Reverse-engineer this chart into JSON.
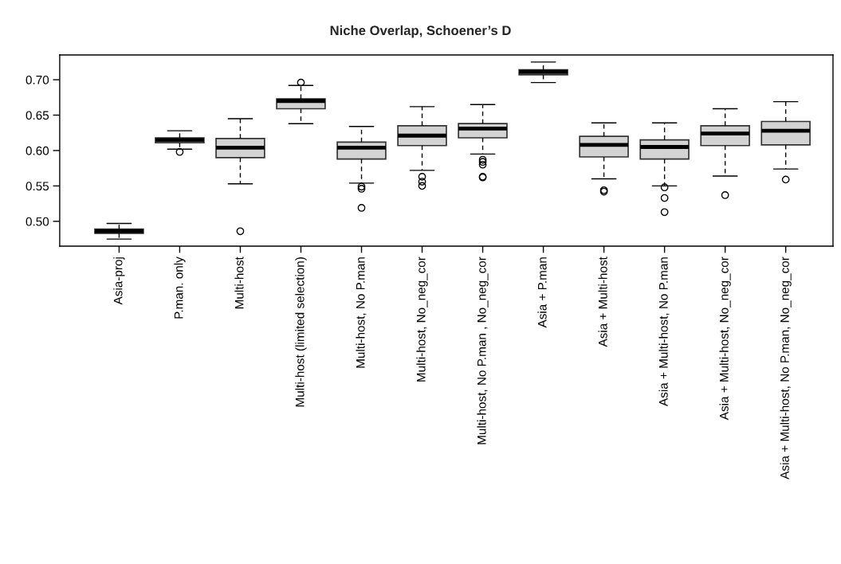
{
  "chart_data": {
    "type": "box",
    "title": "Niche Overlap, Schoener’s D",
    "categories": [
      "Asia-proj",
      "P.man. only",
      "Multi-host",
      "Multi-host (limited selection)",
      "Multi-host, No P.man",
      "Multi-host, No_neg_cor",
      "Multi-host, No P.man , No_neg_cor",
      "Asia + P.man",
      "Asia + Multi-host",
      "Asia + Multi-host, No P.man",
      "Asia + Multi-host, No_neg_cor",
      "Asia + Multi-host, No P.man, No_neg_cor"
    ],
    "color": "#d3d3d3",
    "boxes": [
      {
        "low": 0.475,
        "q1": 0.483,
        "median": 0.486,
        "q3": 0.489,
        "high": 0.497
      },
      {
        "low": 0.602,
        "q1": 0.611,
        "median": 0.615,
        "q3": 0.618,
        "high": 0.628,
        "outliers": [
          0.598
        ]
      },
      {
        "low": 0.553,
        "q1": 0.59,
        "median": 0.604,
        "q3": 0.617,
        "high": 0.645,
        "outliers": [
          0.486
        ]
      },
      {
        "low": 0.638,
        "q1": 0.659,
        "median": 0.67,
        "q3": 0.673,
        "high": 0.692,
        "outliers": [
          0.696
        ]
      },
      {
        "low": 0.554,
        "q1": 0.588,
        "median": 0.604,
        "q3": 0.612,
        "high": 0.634,
        "outliers": [
          0.549,
          0.546,
          0.519
        ]
      },
      {
        "low": 0.572,
        "q1": 0.607,
        "median": 0.621,
        "q3": 0.635,
        "high": 0.662,
        "outliers": [
          0.563,
          0.556,
          0.55
        ]
      },
      {
        "low": 0.595,
        "q1": 0.618,
        "median": 0.631,
        "q3": 0.638,
        "high": 0.665,
        "outliers": [
          0.587,
          0.584,
          0.58,
          0.563,
          0.562
        ]
      },
      {
        "low": 0.696,
        "q1": 0.707,
        "median": 0.711,
        "q3": 0.714,
        "high": 0.725
      },
      {
        "low": 0.56,
        "q1": 0.591,
        "median": 0.608,
        "q3": 0.62,
        "high": 0.639,
        "outliers": [
          0.544,
          0.542
        ]
      },
      {
        "low": 0.55,
        "q1": 0.588,
        "median": 0.605,
        "q3": 0.615,
        "high": 0.639,
        "outliers": [
          0.548,
          0.533,
          0.513
        ]
      },
      {
        "low": 0.564,
        "q1": 0.607,
        "median": 0.624,
        "q3": 0.635,
        "high": 0.659,
        "outliers": [
          0.537
        ]
      },
      {
        "low": 0.574,
        "q1": 0.608,
        "median": 0.628,
        "q3": 0.641,
        "high": 0.669,
        "outliers": [
          0.559
        ]
      }
    ],
    "ylim": [
      0.465,
      0.735
    ],
    "yticks": [
      {
        "value": 0.5,
        "label": "0.50"
      },
      0.55,
      {
        "value": 0.6,
        "label": "0.60"
      },
      0.65,
      {
        "value": 0.7,
        "label": "0.70"
      }
    ],
    "grid": false
  }
}
